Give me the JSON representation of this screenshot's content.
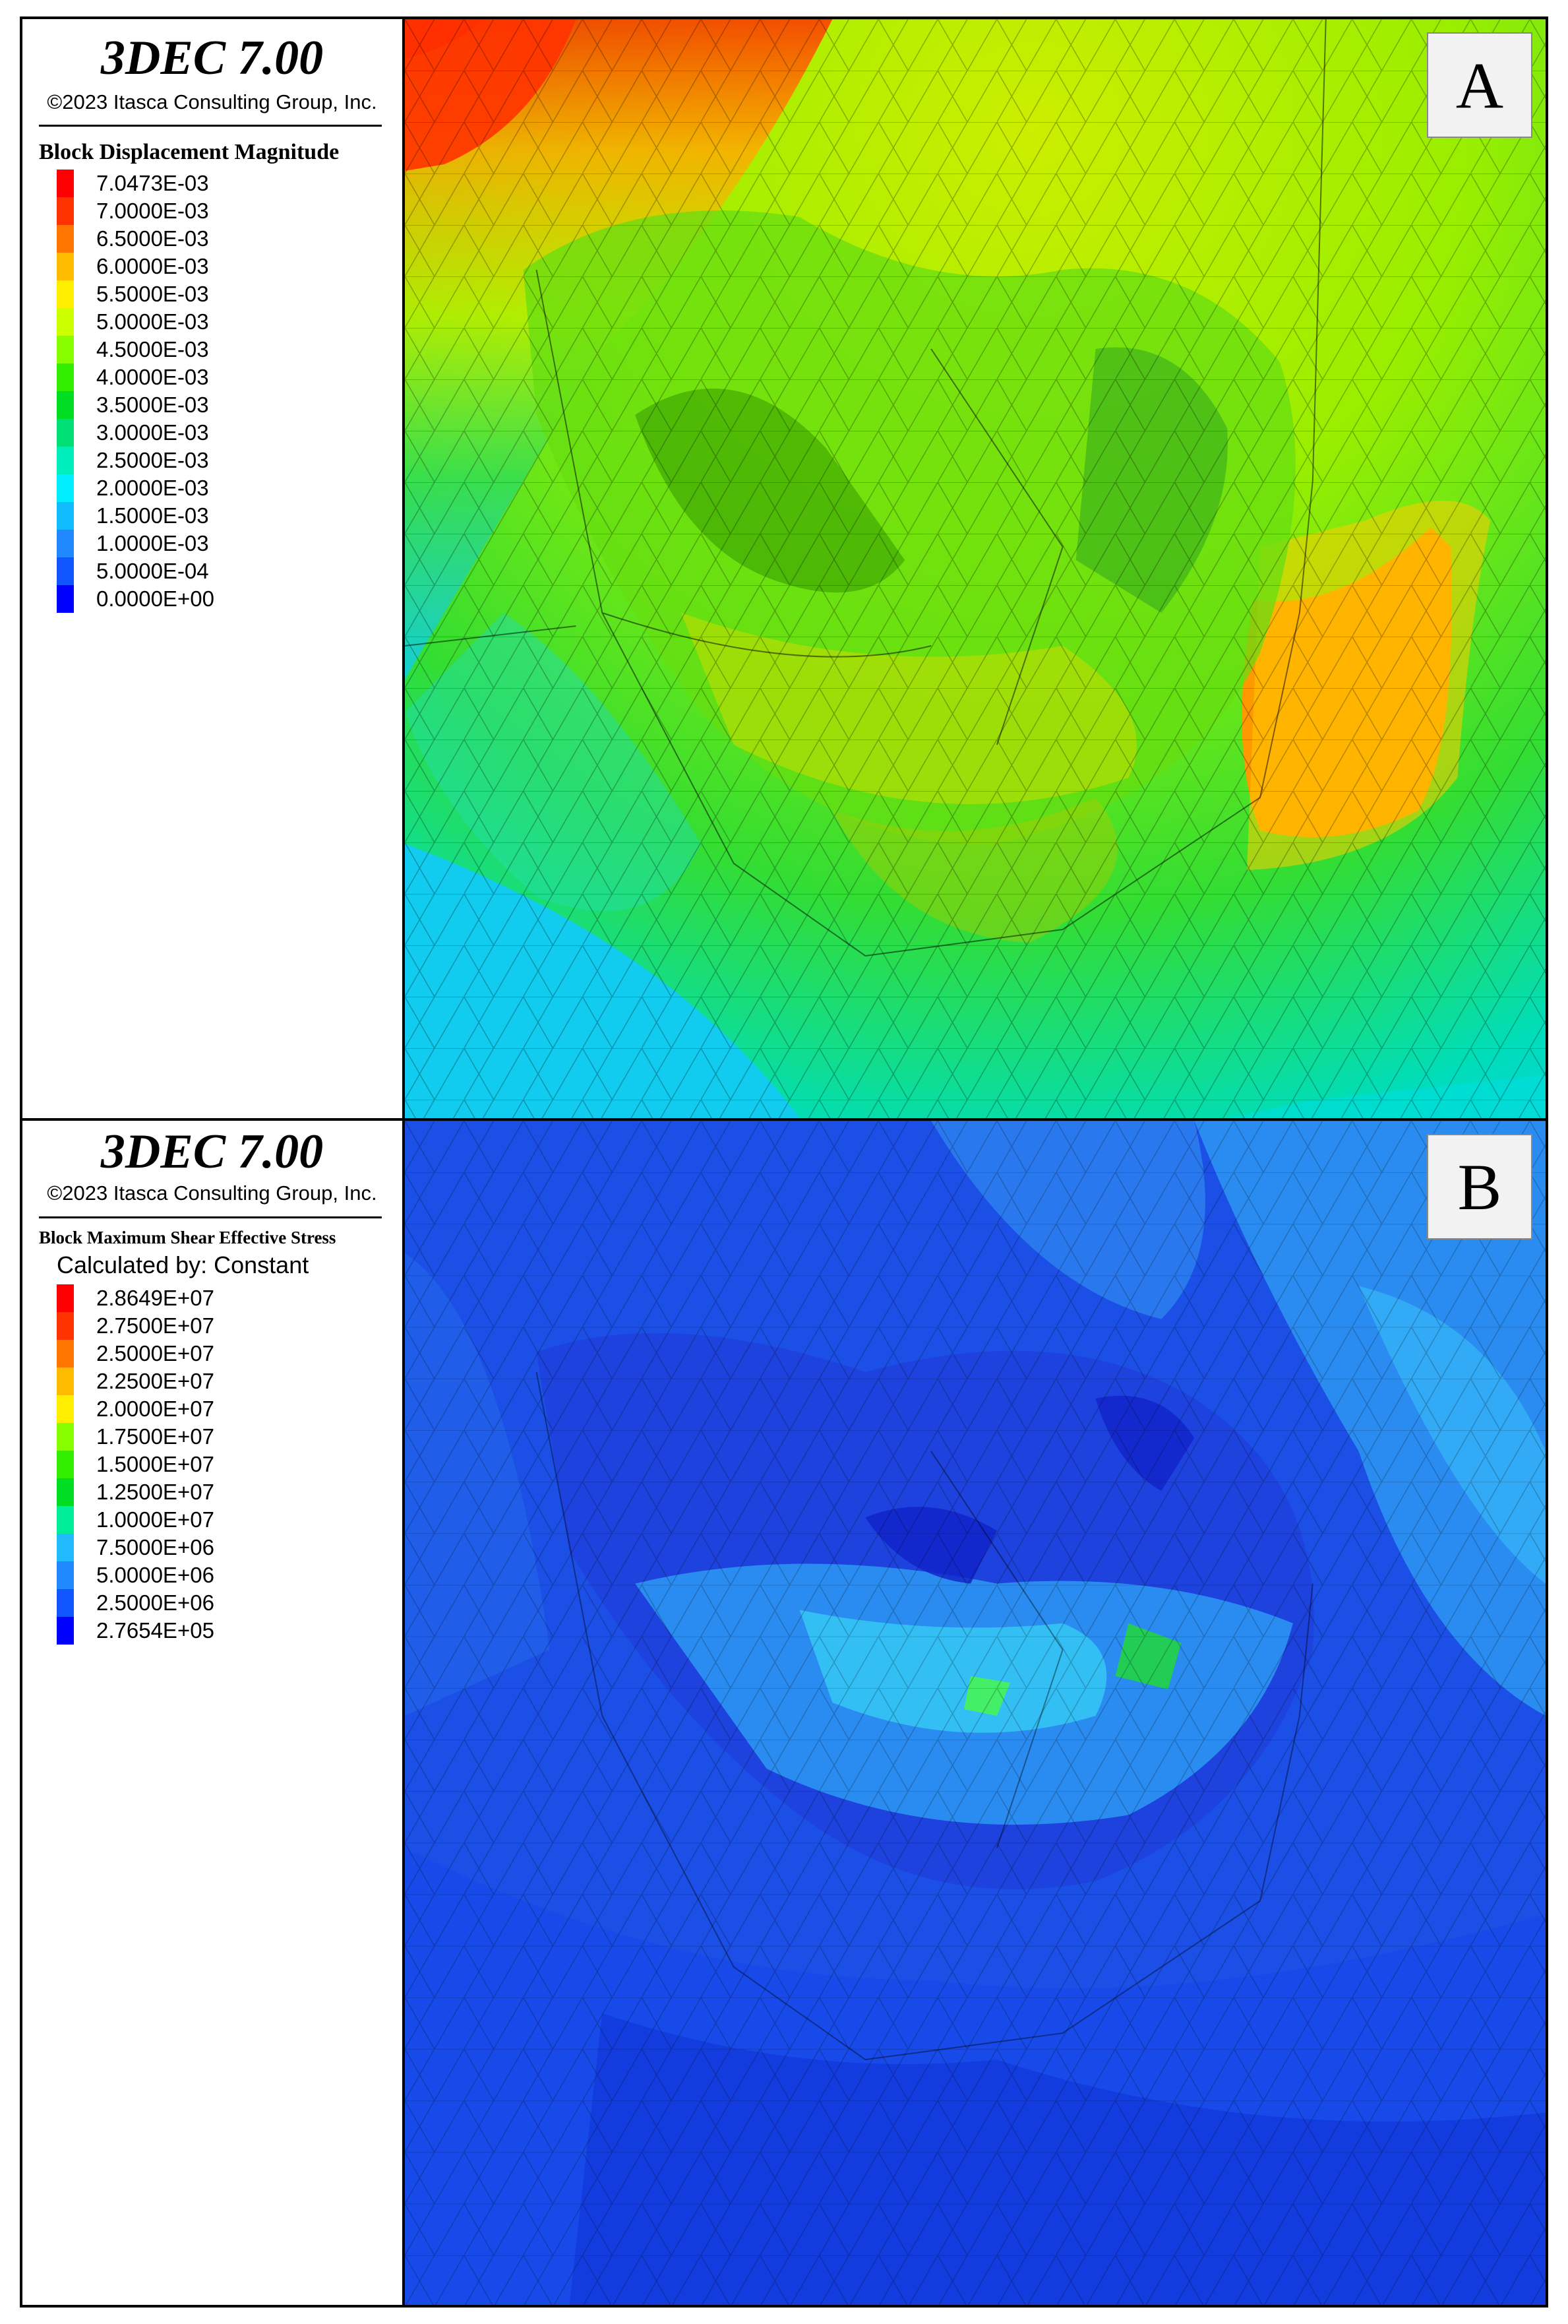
{
  "panels": [
    {
      "id": "A",
      "app_title": "3DEC 7.00",
      "copyright": "©2023 Itasca Consulting Group, Inc.",
      "legend_title": "Block  Displacement Magnitude",
      "calc_line": "",
      "label": "A",
      "colors": [
        "#ff0000",
        "#ff3300",
        "#ff7700",
        "#ffbb00",
        "#ffee00",
        "#ccff00",
        "#88ff00",
        "#33ee00",
        "#00dd22",
        "#00e077",
        "#00eebb",
        "#00eeff",
        "#11bbff",
        "#2288ff",
        "#1155ff",
        "#0000ff"
      ],
      "ticks": [
        "7.0473E-03",
        "7.0000E-03",
        "6.5000E-03",
        "6.0000E-03",
        "5.5000E-03",
        "5.0000E-03",
        "4.5000E-03",
        "4.0000E-03",
        "3.5000E-03",
        "3.0000E-03",
        "2.5000E-03",
        "2.0000E-03",
        "1.5000E-03",
        "1.0000E-03",
        "5.0000E-04",
        "0.0000E+00"
      ]
    },
    {
      "id": "B",
      "app_title": "3DEC 7.00",
      "copyright": "©2023 Itasca Consulting Group, Inc.",
      "legend_title": "Block  Maximum Shear Effective Stress",
      "calc_line": "Calculated by: Constant",
      "label": "B",
      "colors": [
        "#ff0000",
        "#ff3300",
        "#ff7700",
        "#ffbb00",
        "#ffee00",
        "#88ff00",
        "#33ee00",
        "#00dd22",
        "#00ee99",
        "#22bbff",
        "#2288ff",
        "#1155ff",
        "#0000ff"
      ],
      "ticks": [
        "2.8649E+07",
        "2.7500E+07",
        "2.5000E+07",
        "2.2500E+07",
        "2.0000E+07",
        "1.7500E+07",
        "1.5000E+07",
        "1.2500E+07",
        "1.0000E+07",
        "7.5000E+06",
        "5.0000E+06",
        "2.5000E+06",
        "2.7654E+05"
      ]
    }
  ]
}
